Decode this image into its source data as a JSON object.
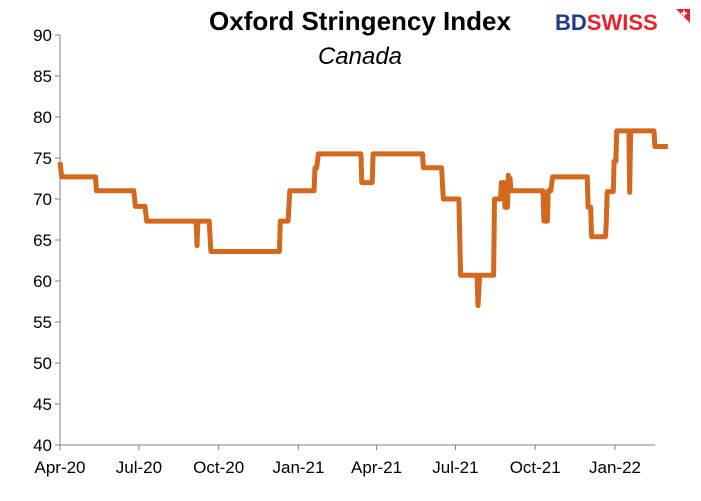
{
  "chart_data": {
    "type": "line",
    "title": "Oxford Stringency Index",
    "subtitle": "Canada",
    "xlabel": "",
    "ylabel": "",
    "ylim": [
      40,
      90
    ],
    "yticks": [
      40,
      45,
      50,
      55,
      60,
      65,
      70,
      75,
      80,
      85,
      90
    ],
    "xticks": [
      "Apr-20",
      "Jul-20",
      "Oct-20",
      "Jan-21",
      "Apr-21",
      "Jul-21",
      "Oct-21",
      "Jan-22"
    ],
    "grid": false,
    "series_color": "#D2691E",
    "series": [
      {
        "points": [
          [
            "2020-04-01",
            74.5
          ],
          [
            "2020-04-03",
            72.7
          ],
          [
            "2020-05-12",
            72.7
          ],
          [
            "2020-05-13",
            71.0
          ],
          [
            "2020-06-25",
            71.0
          ],
          [
            "2020-06-27",
            69.1
          ],
          [
            "2020-07-08",
            69.1
          ],
          [
            "2020-07-10",
            67.3
          ],
          [
            "2020-09-05",
            67.3
          ],
          [
            "2020-09-06",
            64.3
          ],
          [
            "2020-09-07",
            67.3
          ],
          [
            "2020-09-20",
            67.3
          ],
          [
            "2020-09-22",
            63.6
          ],
          [
            "2020-12-10",
            63.6
          ],
          [
            "2020-12-11",
            67.3
          ],
          [
            "2020-12-20",
            67.3
          ],
          [
            "2020-12-22",
            71.0
          ],
          [
            "2021-01-19",
            71.0
          ],
          [
            "2021-01-20",
            73.8
          ],
          [
            "2021-01-22",
            73.8
          ],
          [
            "2021-01-24",
            75.5
          ],
          [
            "2021-03-14",
            75.5
          ],
          [
            "2021-03-15",
            72.0
          ],
          [
            "2021-03-27",
            72.0
          ],
          [
            "2021-03-28",
            75.5
          ],
          [
            "2021-05-24",
            75.5
          ],
          [
            "2021-05-25",
            73.8
          ],
          [
            "2021-06-15",
            73.8
          ],
          [
            "2021-06-17",
            70.0
          ],
          [
            "2021-07-05",
            70.0
          ],
          [
            "2021-07-07",
            60.7
          ],
          [
            "2021-07-26",
            60.7
          ],
          [
            "2021-07-27",
            57.0
          ],
          [
            "2021-07-29",
            60.7
          ],
          [
            "2021-08-14",
            60.7
          ],
          [
            "2021-08-15",
            70.0
          ],
          [
            "2021-08-22",
            70.0
          ],
          [
            "2021-08-23",
            72.0
          ],
          [
            "2021-08-26",
            72.0
          ],
          [
            "2021-08-27",
            69.0
          ],
          [
            "2021-08-30",
            69.0
          ],
          [
            "2021-08-31",
            72.9
          ],
          [
            "2021-09-01",
            71.0
          ],
          [
            "2021-09-02",
            72.5
          ],
          [
            "2021-09-03",
            71.0
          ],
          [
            "2021-10-10",
            71.0
          ],
          [
            "2021-10-11",
            67.3
          ],
          [
            "2021-10-15",
            67.3
          ],
          [
            "2021-10-16",
            71.0
          ],
          [
            "2021-10-19",
            71.0
          ],
          [
            "2021-10-21",
            72.7
          ],
          [
            "2021-11-30",
            72.7
          ],
          [
            "2021-12-01",
            69.0
          ],
          [
            "2021-12-04",
            69.0
          ],
          [
            "2021-12-05",
            65.4
          ],
          [
            "2021-12-21",
            65.4
          ],
          [
            "2021-12-22",
            67.3
          ],
          [
            "2021-12-23",
            70.9
          ],
          [
            "2021-12-30",
            70.9
          ],
          [
            "2021-12-31",
            74.6
          ],
          [
            "2022-01-02",
            74.6
          ],
          [
            "2022-01-03",
            78.3
          ],
          [
            "2022-01-17",
            78.3
          ],
          [
            "2022-01-18",
            70.8
          ],
          [
            "2022-01-19",
            78.3
          ],
          [
            "2022-02-15",
            78.3
          ],
          [
            "2022-02-16",
            76.4
          ],
          [
            "2022-03-03",
            76.4
          ]
        ]
      }
    ]
  },
  "logo": {
    "text": "BDSWISS",
    "bd_color": "#1E3A8A",
    "swiss_color": "#E3242B"
  }
}
